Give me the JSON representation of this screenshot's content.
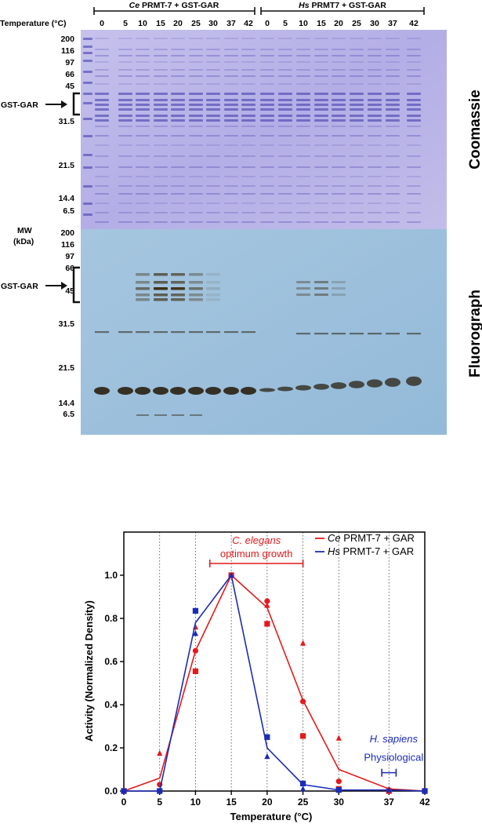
{
  "gel": {
    "header_left": {
      "species": "Ce",
      "rest": " PRMT-7 + GST-GAR"
    },
    "header_right": {
      "species": "Hs",
      "rest": " PRMT7 + GST-GAR"
    },
    "temperature_label": "Temperature (°C)",
    "lane_temps_left": [
      "0",
      "5",
      "10",
      "15",
      "20",
      "25",
      "30",
      "37",
      "42"
    ],
    "lane_temps_right": [
      "0",
      "5",
      "10",
      "15",
      "20",
      "25",
      "30",
      "37",
      "42"
    ],
    "mw_markers_top": [
      "200",
      "116",
      "97",
      "66",
      "45",
      "31.5",
      "21.5",
      "14.4",
      "6.5"
    ],
    "mw_markers_bottom": [
      "200",
      "116",
      "97",
      "66",
      "45",
      "31.5",
      "21.5",
      "14.4",
      "6.5"
    ],
    "mw_label_line1": "MW",
    "mw_label_line2": "(kDa)",
    "gst_gar_label": "GST-GAR",
    "coomassie_label": "Coomassie",
    "fluorograph_label": "Fluorograph",
    "colors": {
      "coomassie_bg": "#b9b4e6",
      "fluor_bg": "#9cc0dc",
      "band_dark": "#2a2010"
    }
  },
  "chart_data": {
    "type": "scatter",
    "xlabel": "Temperature (°C)",
    "ylabel": "Activity (Normalized Density)",
    "x_ticks": [
      0,
      5,
      10,
      15,
      20,
      25,
      30,
      37,
      42
    ],
    "y_ticks": [
      "0.0",
      "0.2",
      "0.4",
      "0.6",
      "0.8",
      "1.0"
    ],
    "xlim": [
      0,
      42
    ],
    "ylim": [
      0,
      1.2
    ],
    "grid": "vertical dotted lines at each x tick",
    "series": [
      {
        "name": "Ce PRMT-7 + GAR",
        "color": "#e41a1c",
        "mean_line": [
          [
            0,
            0
          ],
          [
            5,
            0.06
          ],
          [
            10,
            0.65
          ],
          [
            15,
            1.0
          ],
          [
            20,
            0.85
          ],
          [
            25,
            0.42
          ],
          [
            30,
            0.1
          ],
          [
            37,
            0.01
          ],
          [
            42,
            0.0
          ]
        ],
        "points": [
          {
            "x": 0,
            "y": 0.0,
            "m": "circle"
          },
          {
            "x": 0,
            "y": 0.0,
            "m": "square"
          },
          {
            "x": 5,
            "y": 0.03,
            "m": "circle"
          },
          {
            "x": 5,
            "y": 0.175,
            "m": "triangle"
          },
          {
            "x": 10,
            "y": 0.65,
            "m": "circle"
          },
          {
            "x": 10,
            "y": 0.555,
            "m": "square"
          },
          {
            "x": 10,
            "y": 0.76,
            "m": "triangle"
          },
          {
            "x": 15,
            "y": 1.0,
            "m": "square"
          },
          {
            "x": 15,
            "y": 1.0,
            "m": "circle"
          },
          {
            "x": 20,
            "y": 0.88,
            "m": "circle"
          },
          {
            "x": 20,
            "y": 0.775,
            "m": "square"
          },
          {
            "x": 20,
            "y": 0.86,
            "m": "triangle"
          },
          {
            "x": 25,
            "y": 0.415,
            "m": "circle"
          },
          {
            "x": 25,
            "y": 0.255,
            "m": "square"
          },
          {
            "x": 25,
            "y": 0.685,
            "m": "triangle"
          },
          {
            "x": 30,
            "y": 0.045,
            "m": "circle"
          },
          {
            "x": 30,
            "y": 0.245,
            "m": "triangle"
          },
          {
            "x": 30,
            "y": 0.01,
            "m": "square"
          },
          {
            "x": 37,
            "y": 0.005,
            "m": "circle"
          },
          {
            "x": 37,
            "y": 0.0,
            "m": "square"
          },
          {
            "x": 42,
            "y": 0.0,
            "m": "circle"
          },
          {
            "x": 42,
            "y": 0.0,
            "m": "square"
          }
        ]
      },
      {
        "name": "Hs PRMT-7 + GAR",
        "color": "#1a2bb8",
        "mean_line": [
          [
            0,
            0
          ],
          [
            5,
            0
          ],
          [
            10,
            0.78
          ],
          [
            15,
            1.0
          ],
          [
            20,
            0.2
          ],
          [
            25,
            0.03
          ],
          [
            30,
            0.005
          ],
          [
            37,
            0.005
          ],
          [
            42,
            0.0
          ]
        ],
        "points": [
          {
            "x": 0,
            "y": 0.0,
            "m": "square"
          },
          {
            "x": 5,
            "y": 0.0,
            "m": "square"
          },
          {
            "x": 10,
            "y": 0.835,
            "m": "square"
          },
          {
            "x": 10,
            "y": 0.73,
            "m": "triangle"
          },
          {
            "x": 15,
            "y": 1.0,
            "m": "triangle"
          },
          {
            "x": 20,
            "y": 0.25,
            "m": "square"
          },
          {
            "x": 20,
            "y": 0.16,
            "m": "triangle"
          },
          {
            "x": 25,
            "y": 0.035,
            "m": "square"
          },
          {
            "x": 25,
            "y": 0.01,
            "m": "triangle"
          },
          {
            "x": 30,
            "y": 0.005,
            "m": "square"
          },
          {
            "x": 37,
            "y": 0.005,
            "m": "triangle"
          },
          {
            "x": 42,
            "y": 0.0,
            "m": "square"
          }
        ]
      }
    ],
    "annotations": {
      "ce_growth_line1": "C. elegans",
      "ce_growth_line2": "optimum growth",
      "ce_growth_range": [
        12,
        25
      ],
      "hs_line1": "H. sapiens",
      "hs_line2": "Physiological",
      "hs_range": [
        36,
        38
      ]
    },
    "legend": {
      "placement": "top-right",
      "items": [
        {
          "species": "Ce",
          "rest": " PRMT-7 + GAR",
          "color": "#e41a1c"
        },
        {
          "species": "Hs",
          "rest": " PRMT-7 + GAR",
          "color": "#1a2bb8"
        }
      ]
    }
  }
}
